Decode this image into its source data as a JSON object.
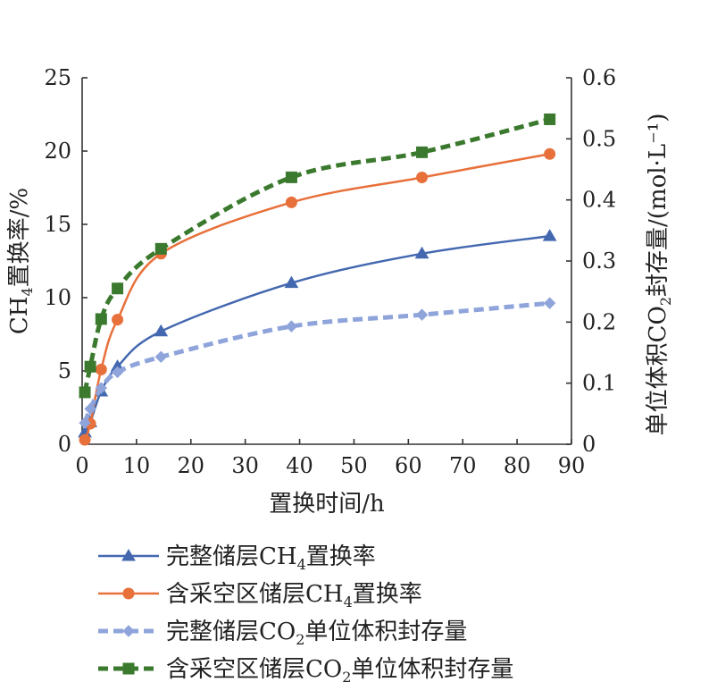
{
  "chart_data": {
    "type": "line",
    "xlabel": "置换时间/h",
    "ylabel_left": {
      "main": "CH",
      "sub": "4",
      "rest": "置换率/%"
    },
    "ylabel_right": {
      "main": "单位体积CO",
      "sub": "2",
      "rest": "封存量/(mol·L⁻¹)"
    },
    "xlim": [
      0,
      90
    ],
    "ylim_left": [
      0,
      25
    ],
    "ylim_right": [
      0,
      0.6
    ],
    "x_ticks": [
      "0",
      "10",
      "20",
      "30",
      "40",
      "50",
      "60",
      "70",
      "80",
      "90"
    ],
    "y_left_ticks": [
      "0",
      "5",
      "10",
      "15",
      "20",
      "25"
    ],
    "y_right_ticks": [
      "0",
      "0.1",
      "0.2",
      "0.3",
      "0.4",
      "0.5",
      "0.6"
    ],
    "legend_position": "bottom",
    "series": [
      {
        "name": {
          "main": "完整储层CH",
          "sub": "4",
          "rest": "置换率"
        },
        "axis": "left",
        "color": "#4468b0",
        "line_style": "solid",
        "marker": "triangle",
        "x": [
          0.5,
          1.5,
          3.5,
          6.5,
          14.5,
          38.5,
          62.5,
          86
        ],
        "y": [
          0.8,
          1.5,
          3.6,
          5.3,
          7.7,
          11.0,
          13.0,
          14.2
        ]
      },
      {
        "name": {
          "main": "含采空区储层CH",
          "sub": "4",
          "rest": "置换率"
        },
        "axis": "left",
        "color": "#e8703a",
        "line_style": "solid",
        "marker": "circle",
        "x": [
          0.5,
          1.5,
          3.5,
          6.5,
          14.5,
          38.5,
          62.5,
          86
        ],
        "y": [
          0.3,
          1.4,
          5.1,
          8.5,
          13.0,
          16.5,
          18.2,
          19.8
        ]
      },
      {
        "name": {
          "main": "完整储层CO",
          "sub": "2",
          "rest": "单位体积封存量"
        },
        "axis": "right",
        "color": "#8ea4da",
        "line_style": "dashed",
        "marker": "diamond",
        "x": [
          0.5,
          1.5,
          3.5,
          6.5,
          14.5,
          38.5,
          62.5,
          86
        ],
        "y": [
          0.035,
          0.058,
          0.092,
          0.118,
          0.143,
          0.193,
          0.212,
          0.231
        ]
      },
      {
        "name": {
          "main": "含采空区储层CO",
          "sub": "2",
          "rest": "单位体积封存量"
        },
        "axis": "right",
        "color": "#3b7a2e",
        "line_style": "dashed",
        "marker": "square",
        "x": [
          0.5,
          1.5,
          3.5,
          6.5,
          14.5,
          38.5,
          62.5,
          86
        ],
        "y": [
          0.085,
          0.127,
          0.205,
          0.255,
          0.32,
          0.437,
          0.478,
          0.532
        ]
      }
    ]
  }
}
